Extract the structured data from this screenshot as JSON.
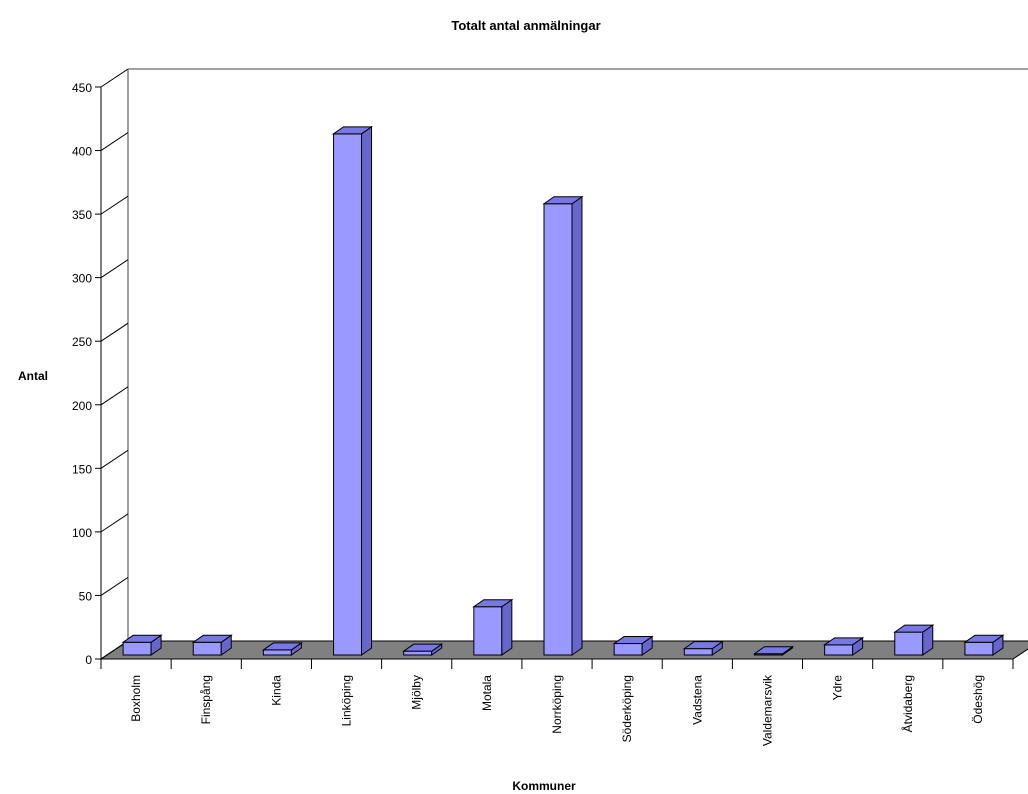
{
  "chart_data": {
    "type": "bar",
    "title": "Totalt antal anmälningar",
    "xlabel": "Kommuner",
    "ylabel": "Antal",
    "ylim": [
      0,
      450
    ],
    "yticks": [
      0,
      50,
      100,
      150,
      200,
      250,
      300,
      350,
      400,
      450
    ],
    "categories": [
      "Boxholm",
      "Finspång",
      "Kinda",
      "Linköping",
      "Mjölby",
      "Motala",
      "Norrköping",
      "Söderköping",
      "Vadstena",
      "Valdemarsvik",
      "Ydre",
      "Åtvidaberg",
      "Ödeshög"
    ],
    "values": [
      10,
      10,
      4,
      410,
      3,
      38,
      355,
      9,
      5,
      1,
      8,
      18,
      10
    ],
    "grid": false,
    "legend": "none",
    "style": "3d",
    "colors": {
      "bar_front": "#9999ff",
      "bar_side": "#6666cc",
      "bar_top": "#7777e6",
      "floor": "#808080",
      "wall_edge": "#808080"
    }
  }
}
